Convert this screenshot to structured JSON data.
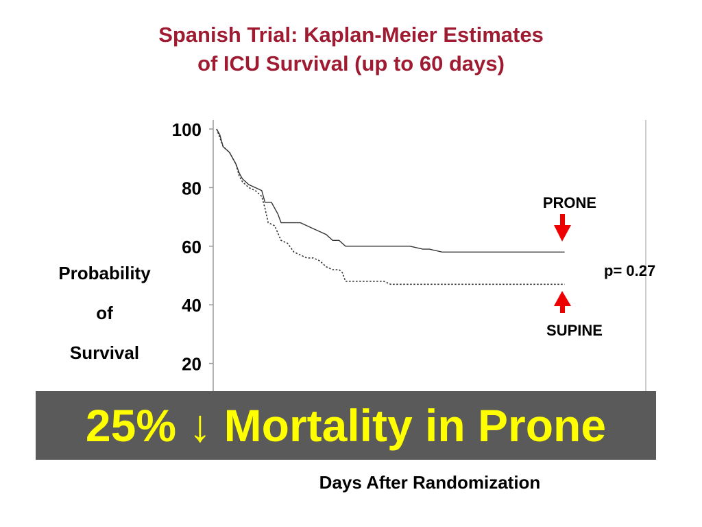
{
  "title": {
    "line1": "Spanish Trial: Kaplan-Meier Estimates",
    "line2": "of ICU Survival (up to 60 days)"
  },
  "colors": {
    "title": "#9e1b32",
    "arrow": "#ee0000",
    "banner_bg": "#5a5a5a",
    "banner_text": "#ffff00",
    "prone_line": "#333333",
    "supine_line": "#333333"
  },
  "y_axis_label": {
    "line1": "Probability",
    "line2": "of",
    "line3": "Survival"
  },
  "x_axis_label": "Days After Randomization",
  "banner_text": "25% ↓ Mortality in Prone",
  "annotations": {
    "prone": "PRONE",
    "supine": "SUPINE",
    "p_value": "p= 0.27"
  },
  "chart_data": {
    "type": "line",
    "ylim": [
      0,
      100
    ],
    "xlim": [
      0,
      60
    ],
    "y_ticks": [
      20,
      40,
      60,
      80,
      100
    ],
    "grid": false,
    "series": [
      {
        "name": "PRONE",
        "style": "solid",
        "x": [
          0,
          0.5,
          1,
          1.5,
          2,
          3,
          3.5,
          4,
          5,
          6,
          7,
          7.5,
          8.5,
          9.5,
          10,
          13,
          15,
          17,
          18,
          19,
          20,
          25,
          30,
          32,
          33,
          35,
          54
        ],
        "y": [
          100,
          98,
          94,
          93,
          92,
          88,
          85,
          83,
          81,
          80,
          79,
          75,
          75,
          71,
          68,
          68,
          66,
          64,
          62,
          62,
          60,
          60,
          60,
          59,
          59,
          58,
          58
        ]
      },
      {
        "name": "SUPINE",
        "style": "dotted",
        "x": [
          0,
          1,
          2,
          3,
          3.5,
          4,
          5,
          6,
          7,
          7.5,
          8,
          9,
          10,
          11,
          12,
          13,
          14,
          15,
          16,
          17,
          18,
          19,
          19.5,
          20,
          26,
          27,
          28,
          35,
          54
        ],
        "y": [
          100,
          94,
          92,
          88,
          84,
          82,
          80,
          79,
          77,
          73,
          68,
          67,
          62,
          61,
          58,
          57,
          56,
          56,
          55,
          53,
          52,
          52,
          51,
          48,
          48,
          47,
          47,
          47,
          47
        ]
      }
    ]
  }
}
